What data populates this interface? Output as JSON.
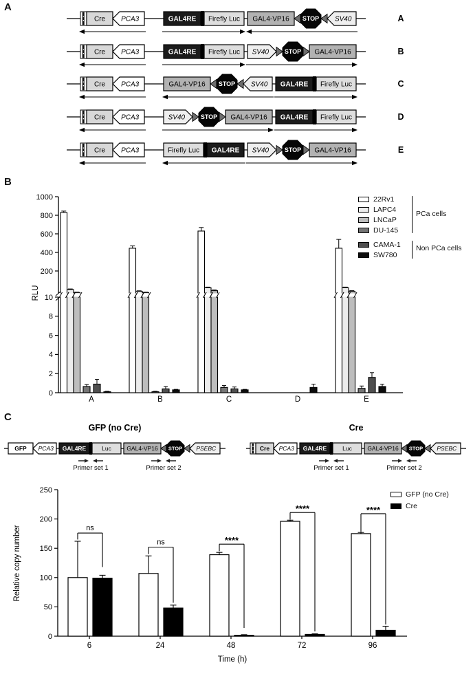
{
  "panels": {
    "a": "A",
    "b": "B",
    "c": "C"
  },
  "panel_a": {
    "rows": [
      {
        "label": "A",
        "elements": [
          {
            "t": "tag"
          },
          {
            "t": "box",
            "s": "cre",
            "l": "Cre",
            "w": 38
          },
          {
            "t": "pent",
            "d": "l",
            "l": "PCA3",
            "w": 46
          },
          {
            "t": "gap",
            "w": 28
          },
          {
            "t": "box",
            "s": "dark",
            "l": "GAL4RE",
            "w": 54
          },
          {
            "t": "bar"
          },
          {
            "t": "box",
            "s": "light",
            "l": "Firefly Luc",
            "w": 58
          },
          {
            "t": "gap",
            "w": 5
          },
          {
            "t": "box",
            "s": "gray",
            "l": "GAL4-VP16",
            "w": 68
          },
          {
            "t": "tri",
            "d": "l"
          },
          {
            "t": "stop",
            "l": "STOP",
            "w": 30
          },
          {
            "t": "tri",
            "d": "l"
          },
          {
            "t": "pent",
            "d": "l",
            "l": "SV40",
            "w": 42,
            "g": true
          }
        ],
        "arrows": [
          {
            "d": "l",
            "from": 0,
            "to": 2
          },
          {
            "d": "r",
            "from": 4,
            "to": 6
          },
          {
            "d": "l",
            "from": 8,
            "to": 12
          }
        ]
      },
      {
        "label": "B",
        "elements": [
          {
            "t": "tag"
          },
          {
            "t": "box",
            "s": "cre",
            "l": "Cre",
            "w": 38
          },
          {
            "t": "pent",
            "d": "l",
            "l": "PCA3",
            "w": 46
          },
          {
            "t": "gap",
            "w": 28
          },
          {
            "t": "box",
            "s": "dark",
            "l": "GAL4RE",
            "w": 54
          },
          {
            "t": "bar"
          },
          {
            "t": "box",
            "s": "light",
            "l": "Firefly Luc",
            "w": 58
          },
          {
            "t": "gap",
            "w": 5
          },
          {
            "t": "pent",
            "d": "r",
            "l": "SV40",
            "w": 42,
            "g": true
          },
          {
            "t": "tri",
            "d": "r"
          },
          {
            "t": "stop",
            "l": "STOP",
            "w": 30
          },
          {
            "t": "tri",
            "d": "r"
          },
          {
            "t": "box",
            "s": "gray",
            "l": "GAL4-VP16",
            "w": 68
          }
        ],
        "arrows": [
          {
            "d": "l",
            "from": 0,
            "to": 2
          },
          {
            "d": "r",
            "from": 4,
            "to": 6
          },
          {
            "d": "r",
            "from": 8,
            "to": 12
          }
        ]
      },
      {
        "label": "C",
        "elements": [
          {
            "t": "tag"
          },
          {
            "t": "box",
            "s": "cre",
            "l": "Cre",
            "w": 38
          },
          {
            "t": "pent",
            "d": "l",
            "l": "PCA3",
            "w": 46
          },
          {
            "t": "gap",
            "w": 28
          },
          {
            "t": "box",
            "s": "gray",
            "l": "GAL4-VP16",
            "w": 68
          },
          {
            "t": "tri",
            "d": "l"
          },
          {
            "t": "stop",
            "l": "STOP",
            "w": 30
          },
          {
            "t": "tri",
            "d": "l"
          },
          {
            "t": "pent",
            "d": "l",
            "l": "SV40",
            "w": 42,
            "g": true
          },
          {
            "t": "gap",
            "w": 5
          },
          {
            "t": "box",
            "s": "dark",
            "l": "GAL4RE",
            "w": 54
          },
          {
            "t": "bar"
          },
          {
            "t": "box",
            "s": "light",
            "l": "Firefly Luc",
            "w": 58
          }
        ],
        "arrows": [
          {
            "d": "l",
            "from": 0,
            "to": 2
          },
          {
            "d": "l",
            "from": 4,
            "to": 8
          },
          {
            "d": "r",
            "from": 10,
            "to": 12
          }
        ]
      },
      {
        "label": "D",
        "elements": [
          {
            "t": "tag"
          },
          {
            "t": "box",
            "s": "cre",
            "l": "Cre",
            "w": 38
          },
          {
            "t": "pent",
            "d": "l",
            "l": "PCA3",
            "w": 46
          },
          {
            "t": "gap",
            "w": 28
          },
          {
            "t": "pent",
            "d": "r",
            "l": "SV40",
            "w": 42,
            "g": true
          },
          {
            "t": "tri",
            "d": "r"
          },
          {
            "t": "stop",
            "l": "STOP",
            "w": 30
          },
          {
            "t": "tri",
            "d": "r"
          },
          {
            "t": "box",
            "s": "gray",
            "l": "GAL4-VP16",
            "w": 68
          },
          {
            "t": "gap",
            "w": 5
          },
          {
            "t": "box",
            "s": "dark",
            "l": "GAL4RE",
            "w": 54
          },
          {
            "t": "bar"
          },
          {
            "t": "box",
            "s": "light",
            "l": "Firefly Luc",
            "w": 58
          }
        ],
        "arrows": [
          {
            "d": "l",
            "from": 0,
            "to": 2
          },
          {
            "d": "r",
            "from": 4,
            "to": 8
          },
          {
            "d": "r",
            "from": 10,
            "to": 12
          }
        ]
      },
      {
        "label": "E",
        "elements": [
          {
            "t": "tag"
          },
          {
            "t": "box",
            "s": "cre",
            "l": "Cre",
            "w": 38
          },
          {
            "t": "pent",
            "d": "l",
            "l": "PCA3",
            "w": 46
          },
          {
            "t": "gap",
            "w": 28
          },
          {
            "t": "box",
            "s": "light",
            "l": "Firefly Luc",
            "w": 58
          },
          {
            "t": "bar"
          },
          {
            "t": "box",
            "s": "dark",
            "l": "GAL4RE",
            "w": 54
          },
          {
            "t": "gap",
            "w": 5
          },
          {
            "t": "pent",
            "d": "r",
            "l": "SV40",
            "w": 42,
            "g": true
          },
          {
            "t": "tri",
            "d": "r"
          },
          {
            "t": "stop",
            "l": "STOP",
            "w": 30
          },
          {
            "t": "tri",
            "d": "r"
          },
          {
            "t": "box",
            "s": "gray",
            "l": "GAL4-VP16",
            "w": 68
          }
        ],
        "arrows": [
          {
            "d": "l",
            "from": 0,
            "to": 2
          },
          {
            "d": "l",
            "from": 4,
            "to": 6
          },
          {
            "d": "r",
            "from": 8,
            "to": 12
          }
        ]
      }
    ]
  },
  "panel_c": {
    "diagrams": [
      {
        "title": "GFP (no Cre)",
        "elements": [
          {
            "t": "box",
            "s": "whiteb",
            "l": "GFP",
            "w": 36
          },
          {
            "t": "pent",
            "d": "l",
            "l": "PCA3",
            "w": 34
          },
          {
            "t": "gap",
            "w": 4
          },
          {
            "t": "box",
            "s": "dark",
            "l": "GAL4RE",
            "w": 44
          },
          {
            "t": "bar"
          },
          {
            "t": "box",
            "s": "light",
            "l": "Luc",
            "w": 42
          },
          {
            "t": "gap",
            "w": 4
          },
          {
            "t": "box",
            "s": "gray",
            "l": "GAL4-VP16",
            "w": 54
          },
          {
            "t": "tri",
            "d": "l"
          },
          {
            "t": "stop",
            "l": "STOP",
            "w": 26
          },
          {
            "t": "tri",
            "d": "l"
          },
          {
            "t": "pent",
            "d": "l",
            "l": "PSEBC",
            "w": 44,
            "g": true
          }
        ],
        "primer_sets": [
          {
            "label": "Primer set 1",
            "at": 4
          },
          {
            "label": "Primer set 2",
            "at": 8
          }
        ]
      },
      {
        "title": "Cre",
        "elements": [
          {
            "t": "tag"
          },
          {
            "t": "box",
            "s": "creb",
            "l": "Cre",
            "w": 26
          },
          {
            "t": "pent",
            "d": "l",
            "l": "PCA3",
            "w": 34
          },
          {
            "t": "gap",
            "w": 4
          },
          {
            "t": "box",
            "s": "dark",
            "l": "GAL4RE",
            "w": 44
          },
          {
            "t": "bar"
          },
          {
            "t": "box",
            "s": "light",
            "l": "Luc",
            "w": 42
          },
          {
            "t": "gap",
            "w": 4
          },
          {
            "t": "box",
            "s": "gray",
            "l": "GAL4-VP16",
            "w": 54
          },
          {
            "t": "tri",
            "d": "l"
          },
          {
            "t": "stop",
            "l": "STOP",
            "w": 26
          },
          {
            "t": "tri",
            "d": "l"
          },
          {
            "t": "pent",
            "d": "l",
            "l": "PSEBC",
            "w": 44,
            "g": true
          }
        ],
        "primer_sets": [
          {
            "label": "Primer set 1",
            "at": 5
          },
          {
            "label": "Primer set 2",
            "at": 9
          }
        ]
      }
    ]
  },
  "chart_data": [
    {
      "type": "bar",
      "panel": "B",
      "title": "",
      "ylabel": "RLU",
      "categories": [
        "A",
        "B",
        "C",
        "D",
        "E"
      ],
      "broken_axis": {
        "lower_range": [
          0,
          10
        ],
        "lower_ticks": [
          0,
          2,
          4,
          6,
          8
        ],
        "break_label": "10",
        "upper_range": [
          10,
          1000
        ],
        "upper_ticks": [
          200,
          400,
          600,
          800,
          1000
        ]
      },
      "series": [
        {
          "name": "22Rv1",
          "color": "#ffffff",
          "values": [
            830,
            445,
            630,
            0,
            445
          ],
          "errors": [
            15,
            25,
            38,
            0,
            95
          ]
        },
        {
          "name": "LAPC4",
          "color": "#ececec",
          "values": [
            40,
            25,
            55,
            0,
            55
          ],
          "errors": [
            5,
            4,
            6,
            0,
            6
          ]
        },
        {
          "name": "LNCaP",
          "color": "#bdbdbd",
          "values": [
            14,
            14,
            30,
            0,
            25
          ],
          "errors": [
            3,
            3,
            6,
            0,
            5
          ]
        },
        {
          "name": "DU-145",
          "color": "#757575",
          "values": [
            0.65,
            0.1,
            0.55,
            0,
            0.45
          ],
          "errors": [
            0.2,
            0.05,
            0.2,
            0,
            0.25
          ]
        },
        {
          "name": "CAMA-1",
          "color": "#4f4f4f",
          "values": [
            0.9,
            0.4,
            0.4,
            0,
            1.6
          ],
          "errors": [
            0.5,
            0.25,
            0.2,
            0,
            0.5
          ]
        },
        {
          "name": "SW780",
          "color": "#0d0d0d",
          "values": [
            0.1,
            0.3,
            0.3,
            0.55,
            0.65
          ],
          "errors": [
            0.05,
            0.05,
            0.05,
            0.35,
            0.25
          ]
        }
      ],
      "legend_groups": [
        {
          "label": "PCa cells",
          "series": [
            "22Rv1",
            "LAPC4",
            "LNCaP",
            "DU-145"
          ]
        },
        {
          "label": "Non PCa cells",
          "series": [
            "CAMA-1",
            "SW780"
          ]
        }
      ],
      "legend_position": "top-right",
      "grid": false
    },
    {
      "type": "bar",
      "panel": "C",
      "title": "",
      "ylabel": "Relative copy number",
      "xlabel": "Time (h)",
      "categories": [
        "6",
        "24",
        "48",
        "72",
        "96"
      ],
      "ylim": [
        0,
        250
      ],
      "yticks": [
        0,
        50,
        100,
        150,
        200,
        250
      ],
      "series": [
        {
          "name": "GFP (no Cre)",
          "color": "#ffffff",
          "values": [
            100,
            107,
            139,
            196,
            175
          ],
          "errors": [
            62,
            30,
            4,
            2,
            2
          ]
        },
        {
          "name": "Cre",
          "color": "#000000",
          "values": [
            99,
            48,
            1.5,
            3,
            10
          ],
          "errors": [
            5,
            5,
            1,
            1,
            7
          ]
        }
      ],
      "significance": [
        {
          "label": "ns",
          "category": "6",
          "bar_top": 176,
          "left_leg_to": 165,
          "right_leg_to": 118
        },
        {
          "label": "ns",
          "category": "24",
          "bar_top": 152,
          "left_leg_to": 140,
          "right_leg_to": 57
        },
        {
          "label": "****",
          "category": "48",
          "bar_top": 157,
          "left_leg_to": 145,
          "right_leg_to": 14
        },
        {
          "label": "****",
          "category": "72",
          "bar_top": 211,
          "left_leg_to": 199,
          "right_leg_to": 8
        },
        {
          "label": "****",
          "category": "96",
          "bar_top": 209,
          "left_leg_to": 178,
          "right_leg_to": 20
        }
      ],
      "legend_position": "top-right",
      "grid": false
    }
  ]
}
